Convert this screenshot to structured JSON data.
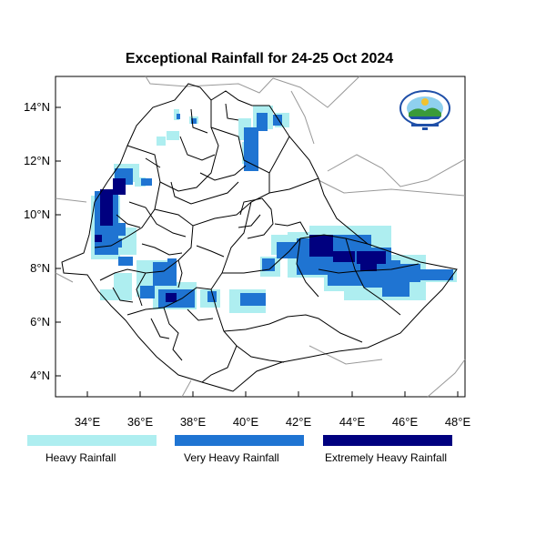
{
  "title": "Exceptional Rainfall for 24-25 Oct 2024",
  "axes": {
    "lon_ticks": [
      "34°E",
      "36°E",
      "38°E",
      "40°E",
      "42°E",
      "44°E",
      "46°E",
      "48°E"
    ],
    "lat_ticks": [
      "14°N",
      "12°N",
      "10°N",
      "8°N",
      "6°N",
      "4°N"
    ]
  },
  "legend": {
    "items": [
      {
        "label": "Heavy Rainfall",
        "color": "#aeeef0"
      },
      {
        "label": "Very Heavy Rainfall",
        "color": "#1f74d2"
      },
      {
        "label": "Extremely Heavy Rainfall",
        "color": "#00007f"
      }
    ]
  },
  "logo": {
    "name": "ethiopian-meteorology-institute-logo"
  },
  "colors": {
    "heavy": "#aeeef0",
    "very_heavy": "#1f74d2",
    "extreme": "#00007f"
  }
}
